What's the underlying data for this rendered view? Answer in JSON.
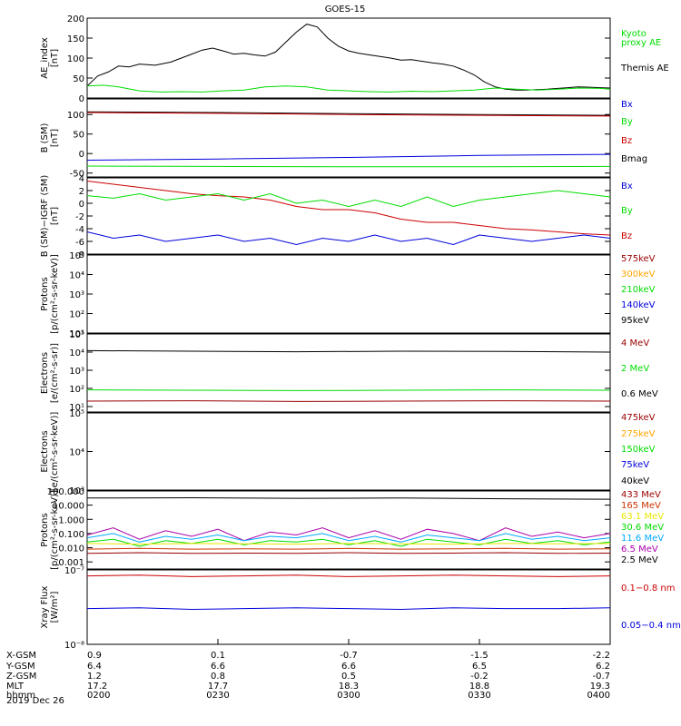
{
  "title": "GOES-15",
  "date_label": "2019 Dec 26",
  "colors": {
    "black": "#000000",
    "blue": "#0000dd",
    "green": "#00dd00",
    "red": "#cc0000",
    "orange": "#ffa500",
    "yellow": "#e6e600",
    "cyan": "#00aaff",
    "purple": "#aa00aa",
    "darkred": "#990000"
  },
  "chart_data": [
    {
      "type": "line",
      "id": "ae",
      "ylabel": "AE_index\n[nT]",
      "ylim": [
        0,
        200
      ],
      "yticks": [
        "200",
        "150",
        "100",
        "50",
        "0"
      ],
      "scale": "linear",
      "legend": [
        {
          "label": "Kyoto\nproxy AE",
          "color": "#00dd00"
        },
        {
          "label": "Themis AE",
          "color": "#000000"
        }
      ],
      "series": [
        {
          "name": "Themis AE",
          "color": "#000000",
          "x": [
            0,
            2,
            4,
            6,
            8,
            10,
            13,
            16,
            18,
            20,
            22,
            24,
            26,
            28,
            30,
            32,
            34,
            36,
            38,
            40,
            42,
            44,
            46,
            48,
            50,
            52,
            54,
            56,
            58,
            60,
            62,
            64,
            66,
            68,
            70,
            72,
            74,
            76,
            78,
            80,
            82,
            84,
            86,
            88,
            90,
            92,
            94,
            96,
            98,
            100
          ],
          "y": [
            30,
            55,
            65,
            80,
            78,
            85,
            82,
            90,
            100,
            110,
            120,
            125,
            118,
            110,
            112,
            108,
            105,
            115,
            140,
            165,
            185,
            178,
            150,
            130,
            118,
            112,
            108,
            104,
            100,
            95,
            96,
            92,
            88,
            85,
            80,
            70,
            58,
            40,
            28,
            22,
            20,
            20,
            21,
            22,
            24,
            26,
            28,
            27,
            26,
            25
          ]
        },
        {
          "name": "Kyoto proxy AE",
          "color": "#00dd00",
          "x": [
            0,
            3,
            6,
            10,
            14,
            18,
            22,
            26,
            30,
            34,
            38,
            42,
            46,
            50,
            54,
            58,
            62,
            66,
            70,
            74,
            78,
            82,
            86,
            90,
            94,
            98,
            100
          ],
          "y": [
            30,
            32,
            28,
            18,
            15,
            16,
            15,
            18,
            20,
            28,
            30,
            28,
            20,
            18,
            16,
            15,
            17,
            16,
            18,
            20,
            25,
            22,
            20,
            22,
            25,
            24,
            22
          ]
        }
      ]
    },
    {
      "type": "line",
      "id": "bsm",
      "ylabel": "B (SM)\n[nT]",
      "ylim": [
        -60,
        140
      ],
      "yticks": [
        "100",
        "50",
        "0",
        "-50"
      ],
      "ytickvals": [
        100,
        50,
        0,
        -50
      ],
      "scale": "linear",
      "legend": [
        {
          "label": "Bx",
          "color": "#0000dd"
        },
        {
          "label": "By",
          "color": "#00dd00"
        },
        {
          "label": "Bz",
          "color": "#cc0000"
        },
        {
          "label": "Bmag",
          "color": "#000000"
        }
      ],
      "series": [
        {
          "name": "Bmag",
          "color": "#000000",
          "x": [
            0,
            25,
            50,
            75,
            100
          ],
          "y": [
            107,
            105,
            102,
            100,
            98
          ]
        },
        {
          "name": "Bz",
          "color": "#cc0000",
          "x": [
            0,
            25,
            50,
            75,
            100
          ],
          "y": [
            105,
            103,
            100,
            98,
            96
          ]
        },
        {
          "name": "Bx",
          "color": "#0000dd",
          "x": [
            0,
            25,
            50,
            75,
            100
          ],
          "y": [
            -17,
            -14,
            -10,
            -5,
            -2
          ]
        },
        {
          "name": "By",
          "color": "#00dd00",
          "x": [
            0,
            25,
            50,
            75,
            100
          ],
          "y": [
            -32,
            -33,
            -34,
            -34,
            -33
          ]
        }
      ]
    },
    {
      "type": "line",
      "id": "bigrf",
      "ylabel": "B (SM)−IGRF (SM)\n[nT]",
      "ylim": [
        -8,
        4
      ],
      "yticks": [
        "4",
        "2",
        "0",
        "-2",
        "-4",
        "-6",
        "-8"
      ],
      "ytickvals": [
        4,
        2,
        0,
        -2,
        -4,
        -6,
        -8
      ],
      "scale": "linear",
      "legend": [
        {
          "label": "Bx",
          "color": "#0000dd"
        },
        {
          "label": "By",
          "color": "#00dd00"
        },
        {
          "label": "Bz",
          "color": "#cc0000"
        }
      ],
      "series": [
        {
          "name": "Bz",
          "color": "#cc0000",
          "x": [
            0,
            5,
            10,
            15,
            20,
            25,
            30,
            35,
            40,
            45,
            50,
            55,
            60,
            65,
            70,
            75,
            80,
            85,
            90,
            95,
            100
          ],
          "y": [
            3.5,
            3,
            2.5,
            2,
            1.5,
            1.2,
            1,
            0.5,
            -0.5,
            -1,
            -1,
            -1.5,
            -2.5,
            -3,
            -3,
            -3.5,
            -4,
            -4.2,
            -4.5,
            -4.8,
            -5
          ]
        },
        {
          "name": "By",
          "color": "#00dd00",
          "x": [
            0,
            5,
            10,
            15,
            20,
            25,
            30,
            35,
            40,
            45,
            50,
            55,
            60,
            65,
            70,
            75,
            80,
            85,
            90,
            95,
            100
          ],
          "y": [
            1.2,
            0.8,
            1.5,
            0.5,
            1,
            1.5,
            0.5,
            1.5,
            0,
            0.5,
            -0.5,
            0.5,
            -0.5,
            1,
            -0.5,
            0.5,
            1,
            1.5,
            2,
            1.5,
            1
          ]
        },
        {
          "name": "Bx",
          "color": "#0000dd",
          "x": [
            0,
            5,
            10,
            15,
            20,
            25,
            30,
            35,
            40,
            45,
            50,
            55,
            60,
            65,
            70,
            75,
            80,
            85,
            90,
            95,
            100
          ],
          "y": [
            -4.5,
            -5.5,
            -5,
            -6,
            -5.5,
            -5,
            -6,
            -5.5,
            -6.5,
            -5.5,
            -6,
            -5,
            -6,
            -5.5,
            -6.5,
            -5,
            -5.5,
            -6,
            -5.5,
            -5,
            -5.5
          ]
        }
      ]
    },
    {
      "type": "line",
      "id": "protons",
      "ylabel": "Protons\n[p/(cm²-s-sr-keV)]",
      "ylim": [
        1,
        5
      ],
      "yticks": [
        "10⁵",
        "10⁴",
        "10³",
        "10²",
        "10¹"
      ],
      "scale": "log",
      "legend": [
        {
          "label": "575keV",
          "color": "#990000"
        },
        {
          "label": "300keV",
          "color": "#ffa500"
        },
        {
          "label": "210keV",
          "color": "#00dd00"
        },
        {
          "label": "140keV",
          "color": "#0000dd"
        },
        {
          "label": "95keV",
          "color": "#000000"
        }
      ],
      "series": []
    },
    {
      "type": "line",
      "id": "electrons1",
      "ylabel": "Electrons\n[e/(cm²-s-sr)]",
      "ylim": [
        0.7,
        5
      ],
      "yticks": [
        "10⁵",
        "10⁴",
        "10³",
        "10²",
        "10¹"
      ],
      "ytickvals": [
        5,
        4,
        3,
        2,
        1
      ],
      "scale": "log",
      "legend": [
        {
          "label": "4 MeV",
          "color": "#990000"
        },
        {
          "label": "2 MeV",
          "color": "#00dd00"
        },
        {
          "label": "0.6 MeV",
          "color": "#000000"
        }
      ],
      "series": [
        {
          "name": "0.6 MeV",
          "color": "#000000",
          "x": [
            0,
            20,
            40,
            60,
            80,
            100
          ],
          "y": [
            4.08,
            4.05,
            4.02,
            4.05,
            4.04,
            4.0
          ]
        },
        {
          "name": "2 MeV",
          "color": "#00dd00",
          "x": [
            0,
            20,
            40,
            60,
            80,
            100
          ],
          "y": [
            1.92,
            1.9,
            1.88,
            1.9,
            1.92,
            1.9
          ]
        },
        {
          "name": "4 MeV",
          "color": "#990000",
          "x": [
            0,
            20,
            40,
            60,
            80,
            100
          ],
          "y": [
            1.3,
            1.32,
            1.28,
            1.3,
            1.32,
            1.3
          ]
        }
      ]
    },
    {
      "type": "line",
      "id": "electrons2",
      "ylabel": "Electrons\n[e/(cm²-s-sr-keV)]",
      "ylim": [
        3,
        5
      ],
      "yticks": [
        "10⁵",
        "10⁴",
        "10³"
      ],
      "scale": "log",
      "legend": [
        {
          "label": "475keV",
          "color": "#990000"
        },
        {
          "label": "275keV",
          "color": "#ffa500"
        },
        {
          "label": "150keV",
          "color": "#00dd00"
        },
        {
          "label": "75keV",
          "color": "#0000dd"
        },
        {
          "label": "40keV",
          "color": "#000000"
        }
      ],
      "series": []
    },
    {
      "type": "line",
      "id": "protons2",
      "ylabel": "Protons\n[p/(cm²-s-sr-keV)]",
      "ylim": [
        -3.5,
        2
      ],
      "yticks": [
        "100.000",
        "10.000",
        "1.000",
        "0.100",
        "0.010",
        "0.001"
      ],
      "ytickvals": [
        2,
        1,
        0,
        -1,
        -2,
        -3
      ],
      "scale": "log",
      "legend": [
        {
          "label": "433 MeV",
          "color": "#990000"
        },
        {
          "label": "165 MeV",
          "color": "#cc3300"
        },
        {
          "label": "63.1 MeV",
          "color": "#e6e600"
        },
        {
          "label": "30.6 MeV",
          "color": "#00dd00"
        },
        {
          "label": "11.6 MeV",
          "color": "#00aaff"
        },
        {
          "label": "6.5 MeV",
          "color": "#aa00aa"
        },
        {
          "label": "2.5 MeV",
          "color": "#000000"
        }
      ],
      "series": [
        {
          "name": "2.5 MeV",
          "color": "#000000",
          "x": [
            0,
            20,
            40,
            60,
            80,
            100
          ],
          "y": [
            1.5,
            1.52,
            1.48,
            1.5,
            1.45,
            1.42
          ]
        },
        {
          "name": "6.5 MeV",
          "color": "#aa00aa",
          "x": [
            0,
            5,
            10,
            15,
            20,
            25,
            30,
            35,
            40,
            45,
            50,
            55,
            60,
            65,
            70,
            75,
            80,
            85,
            90,
            95,
            100
          ],
          "y": [
            -1.1,
            -0.6,
            -1.4,
            -0.8,
            -1.2,
            -0.7,
            -1.5,
            -0.9,
            -1.1,
            -0.6,
            -1.3,
            -0.8,
            -1.4,
            -0.7,
            -1.0,
            -1.5,
            -0.6,
            -1.2,
            -0.9,
            -1.3,
            -1.0
          ]
        },
        {
          "name": "11.6 MeV",
          "color": "#00aaff",
          "x": [
            0,
            5,
            10,
            15,
            20,
            25,
            30,
            35,
            40,
            45,
            50,
            55,
            60,
            65,
            70,
            75,
            80,
            85,
            90,
            95,
            100
          ],
          "y": [
            -1.3,
            -1.0,
            -1.6,
            -1.2,
            -1.4,
            -1.1,
            -1.5,
            -1.2,
            -1.3,
            -1.0,
            -1.5,
            -1.2,
            -1.6,
            -1.1,
            -1.3,
            -1.5,
            -1.0,
            -1.4,
            -1.2,
            -1.5,
            -1.3
          ]
        },
        {
          "name": "30.6 MeV",
          "color": "#00dd00",
          "x": [
            0,
            5,
            10,
            15,
            20,
            25,
            30,
            35,
            40,
            45,
            50,
            55,
            60,
            65,
            70,
            75,
            80,
            85,
            90,
            95,
            100
          ],
          "y": [
            -1.6,
            -1.4,
            -1.9,
            -1.5,
            -1.7,
            -1.4,
            -1.8,
            -1.5,
            -1.6,
            -1.4,
            -1.8,
            -1.5,
            -1.9,
            -1.4,
            -1.6,
            -1.8,
            -1.4,
            -1.7,
            -1.5,
            -1.8,
            -1.6
          ]
        },
        {
          "name": "63.1 MeV",
          "color": "#e6e600",
          "x": [
            0,
            10,
            20,
            30,
            40,
            50,
            60,
            70,
            80,
            90,
            100
          ],
          "y": [
            -1.7,
            -1.75,
            -1.7,
            -1.72,
            -1.75,
            -1.7,
            -1.72,
            -1.75,
            -1.7,
            -1.72,
            -1.7
          ]
        },
        {
          "name": "165 MeV",
          "color": "#cc3300",
          "x": [
            0,
            10,
            20,
            30,
            40,
            50,
            60,
            70,
            80,
            90,
            100
          ],
          "y": [
            -2.1,
            -2.05,
            -2.1,
            -2.08,
            -2.1,
            -2.05,
            -2.1,
            -2.08,
            -2.05,
            -2.1,
            -2.08
          ]
        },
        {
          "name": "433 MeV",
          "color": "#990000",
          "x": [
            0,
            10,
            20,
            30,
            40,
            50,
            60,
            70,
            80,
            90,
            100
          ],
          "y": [
            -2.4,
            -2.35,
            -2.4,
            -2.38,
            -2.4,
            -2.35,
            -2.4,
            -2.38,
            -2.35,
            -2.4,
            -2.38
          ]
        }
      ]
    },
    {
      "type": "line",
      "id": "xray",
      "ylabel": "Xray Flux\n[W/m²]",
      "ylim": [
        -8,
        -7
      ],
      "yticks": [
        "10⁻⁷",
        "10⁻⁸"
      ],
      "ytickvals": [
        -7,
        -8
      ],
      "scale": "log",
      "legend": [
        {
          "label": "0.1−0.8 nm",
          "color": "#cc0000"
        },
        {
          "label": "0.05−0.4 nm",
          "color": "#0000dd"
        }
      ],
      "series": [
        {
          "name": "0.1-0.8 nm",
          "color": "#cc0000",
          "x": [
            0,
            10,
            20,
            30,
            40,
            50,
            60,
            70,
            80,
            90,
            100
          ],
          "y": [
            -7.08,
            -7.07,
            -7.09,
            -7.08,
            -7.07,
            -7.09,
            -7.08,
            -7.07,
            -7.08,
            -7.09,
            -7.08
          ]
        },
        {
          "name": "0.05-0.4 nm",
          "color": "#0000dd",
          "x": [
            0,
            10,
            20,
            30,
            40,
            50,
            60,
            70,
            80,
            90,
            100
          ],
          "y": [
            -7.52,
            -7.51,
            -7.53,
            -7.52,
            -7.51,
            -7.52,
            -7.53,
            -7.51,
            -7.52,
            -7.52,
            -7.51
          ]
        }
      ]
    }
  ],
  "x_axis": {
    "row_labels": [
      "X-GSM",
      "Y-GSM",
      "Z-GSM",
      "MLT",
      "hhmm"
    ],
    "columns": [
      {
        "values": [
          "0.9",
          "6.4",
          "1.2",
          "17.2",
          "0200"
        ]
      },
      {
        "values": [
          "0.1",
          "6.6",
          "0.8",
          "17.7",
          "0230"
        ]
      },
      {
        "values": [
          "-0.7",
          "6.6",
          "0.5",
          "18.3",
          "0300"
        ]
      },
      {
        "values": [
          "-1.5",
          "6.5",
          "-0.2",
          "18.8",
          "0330"
        ]
      },
      {
        "values": [
          "-2.2",
          "6.2",
          "-0.7",
          "19.3",
          "0400"
        ]
      }
    ]
  }
}
